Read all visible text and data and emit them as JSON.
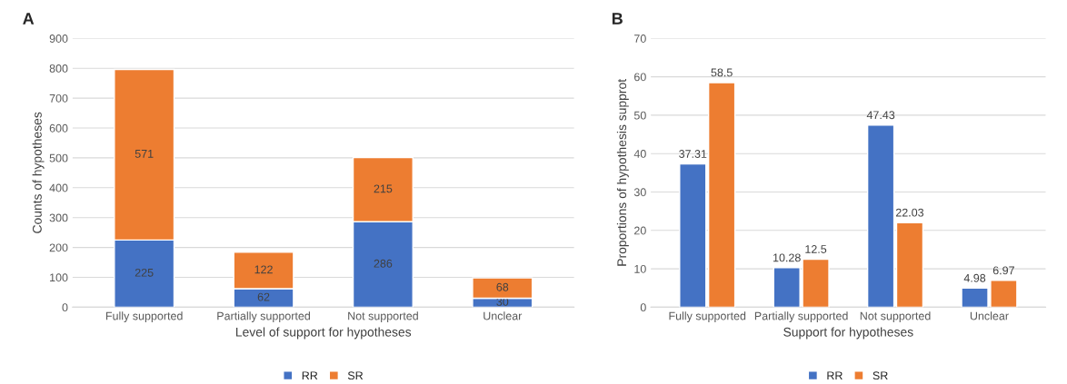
{
  "chart_data": [
    {
      "type": "bar",
      "title": "A",
      "stacked": true,
      "categories": [
        "Fully supported",
        "Partially supported",
        "Not supported",
        "Unclear"
      ],
      "series": [
        {
          "name": "RR",
          "color": "#4472c4",
          "values": [
            225,
            62,
            286,
            30
          ]
        },
        {
          "name": "SR",
          "color": "#ed7d31",
          "values": [
            571,
            122,
            215,
            68
          ]
        }
      ],
      "xlabel": "Level of support for hypotheses",
      "ylabel": "Counts of hypotheses",
      "ylim": [
        0,
        900
      ],
      "yticks": [
        0,
        100,
        200,
        300,
        400,
        500,
        600,
        700,
        800,
        900
      ],
      "grid": "y",
      "legend": "bottom",
      "data_labels": true
    },
    {
      "type": "bar",
      "title": "B",
      "categories": [
        "Fully supported",
        "Partially supported",
        "Not supported",
        "Unclear"
      ],
      "series": [
        {
          "name": "RR",
          "color": "#4472c4",
          "values": [
            37.31,
            10.28,
            47.43,
            4.98
          ]
        },
        {
          "name": "SR",
          "color": "#ed7d31",
          "values": [
            58.5,
            12.5,
            22.03,
            6.97
          ]
        }
      ],
      "xlabel": "Support for hypotheses",
      "ylabel": "Proportions of hypothesis supprot",
      "ylim": [
        0,
        70
      ],
      "yticks": [
        0,
        10,
        20,
        30,
        40,
        50,
        60,
        70
      ],
      "grid": "y",
      "legend": "bottom",
      "data_labels": true
    }
  ]
}
